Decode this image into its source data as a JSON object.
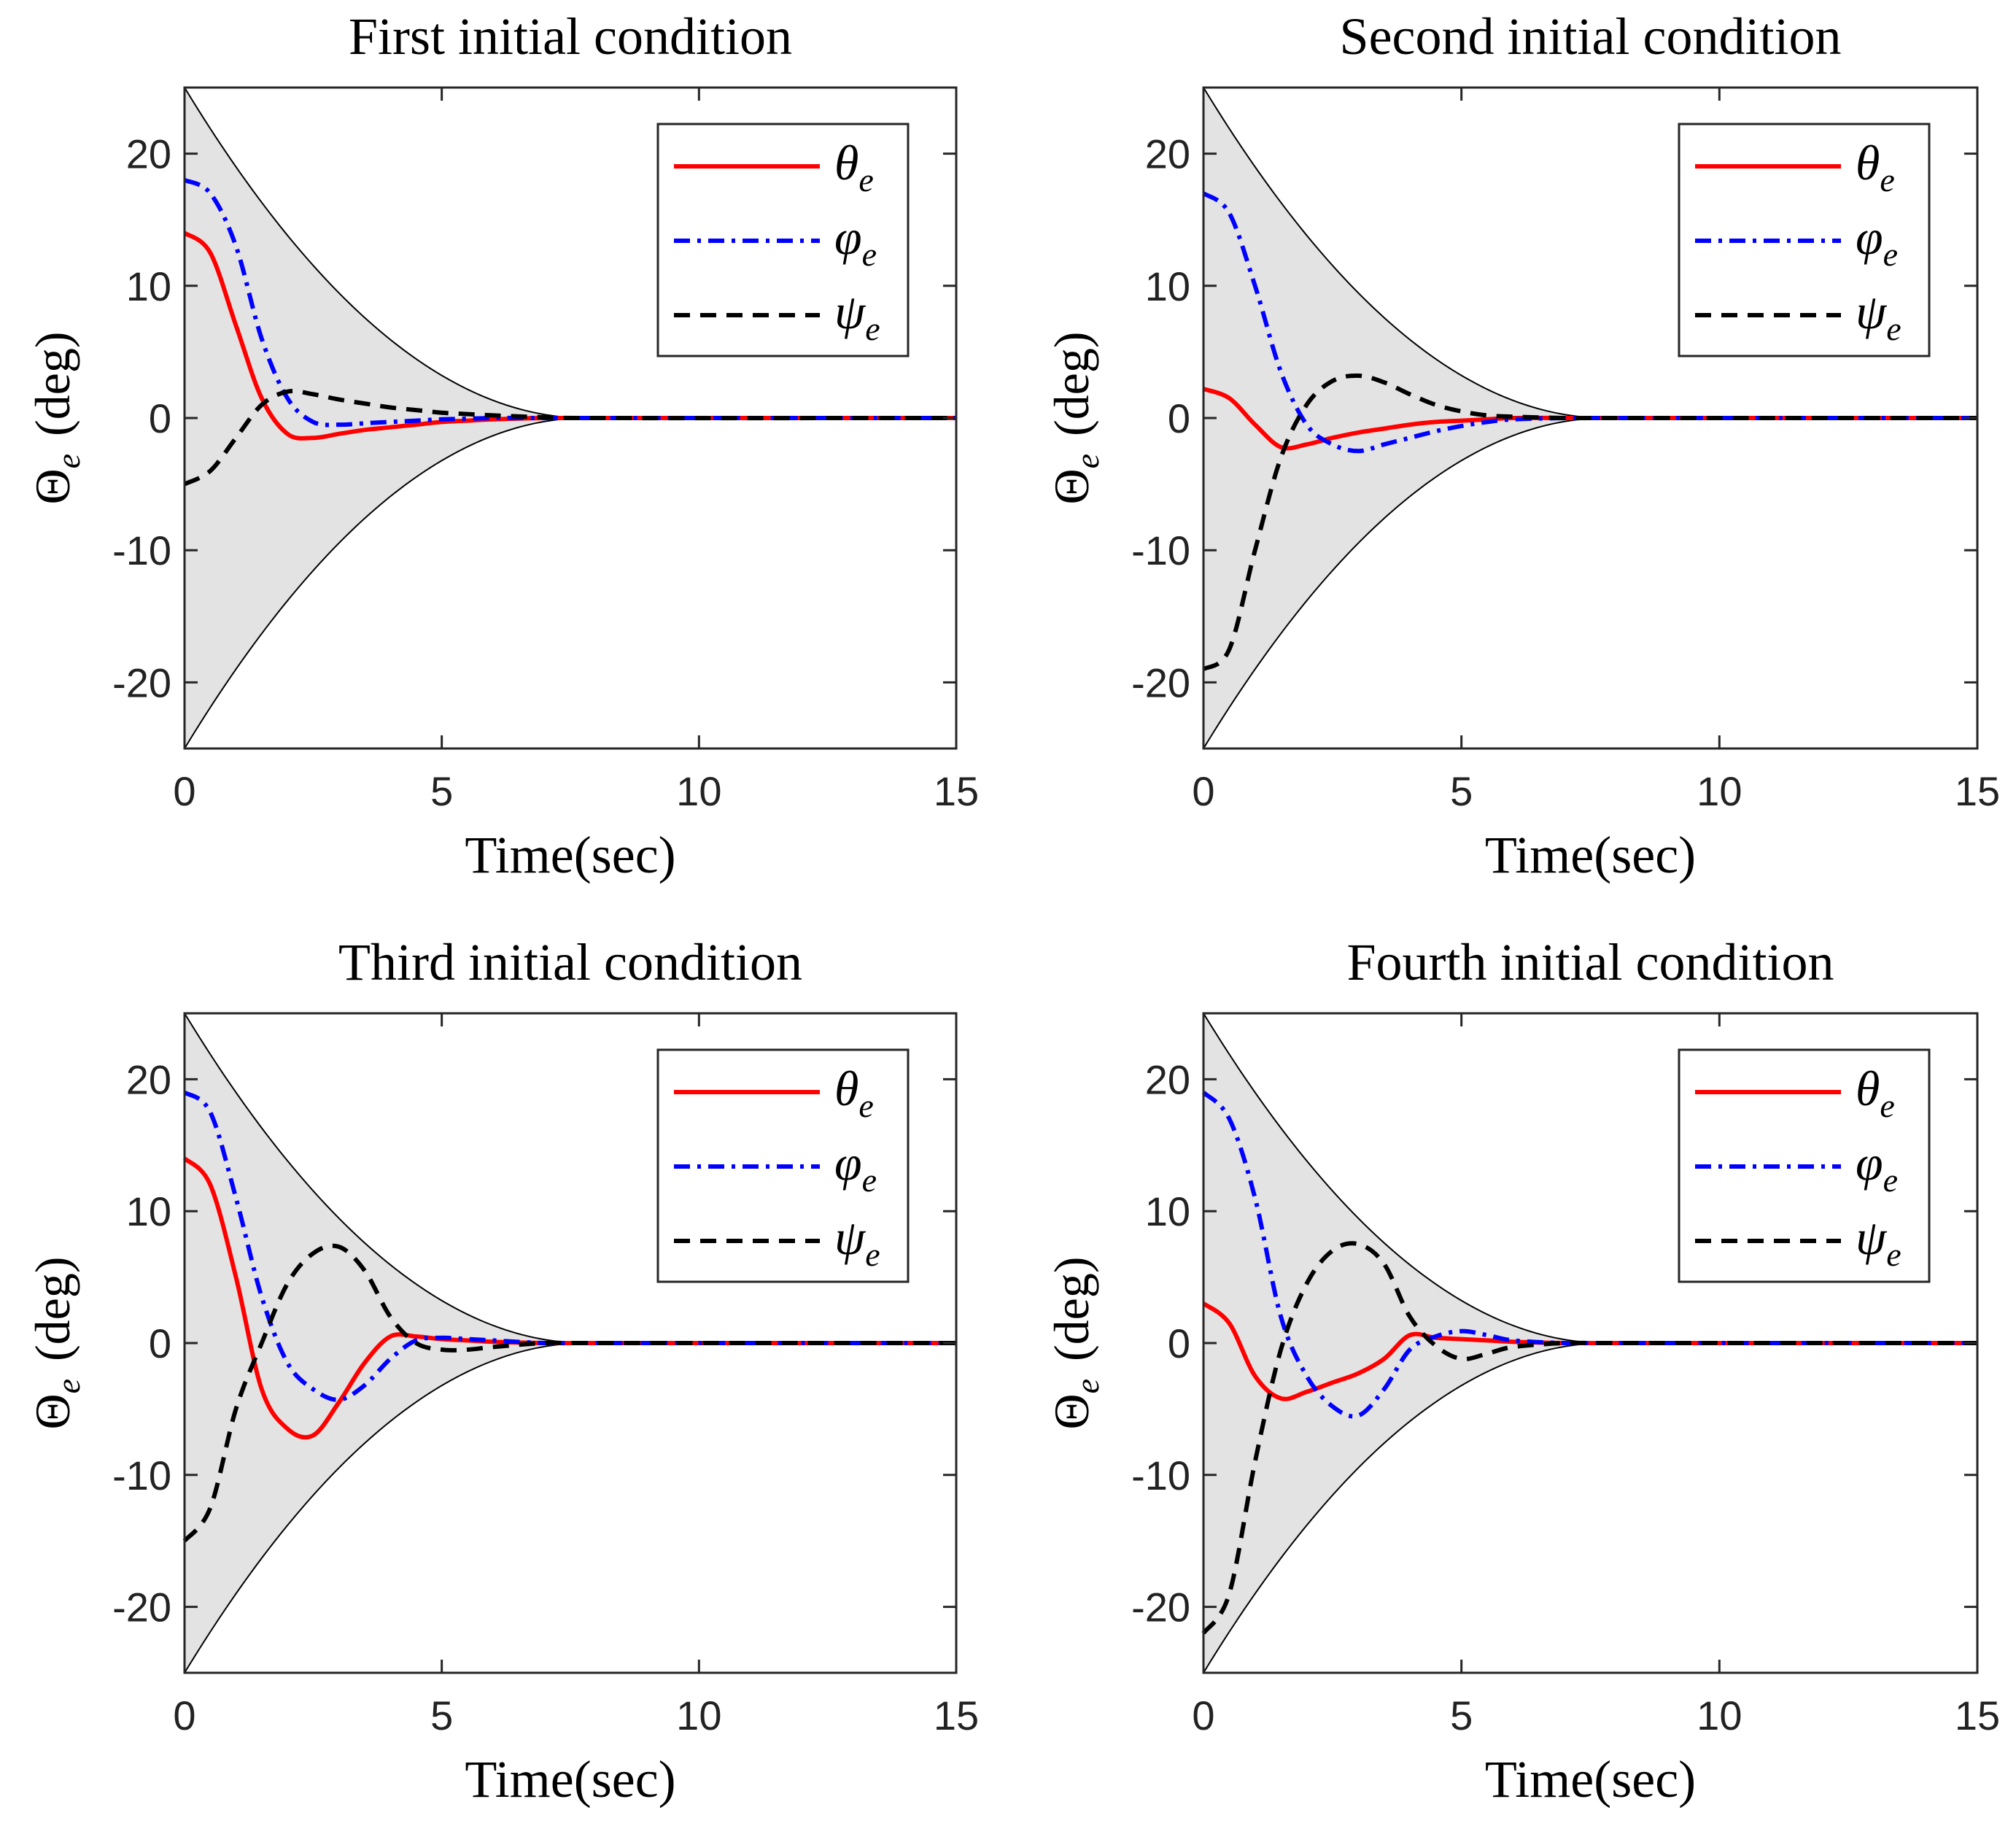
{
  "chart_data": [
    {
      "type": "line",
      "title": "First initial condition",
      "xlabel": "Time(sec)",
      "ylabel": {
        "symbol": "Θ",
        "sub": "e",
        "unit": "(deg)"
      },
      "xlim": [
        0,
        15
      ],
      "ylim": [
        -25,
        25
      ],
      "xticks": [
        "0",
        "5",
        "10",
        "15"
      ],
      "yticks": [
        "-20",
        "-10",
        "0",
        "10",
        "20"
      ],
      "legend_position": "top-right",
      "envelope": {
        "initial": 25,
        "converge_time": 7.8,
        "fill": "#e3e3e3"
      },
      "x": [
        0,
        0.5,
        1,
        1.5,
        2,
        2.5,
        3,
        3.5,
        4,
        4.5,
        5,
        5.5,
        6,
        7,
        8,
        15
      ],
      "series": [
        {
          "name": "θ",
          "sub": "e",
          "color": "#ff0000",
          "style": "solid",
          "values": [
            14,
            12.5,
            7,
            1.5,
            -1.2,
            -1.5,
            -1.2,
            -0.9,
            -0.7,
            -0.5,
            -0.3,
            -0.2,
            -0.1,
            0,
            0,
            0
          ]
        },
        {
          "name": "φ",
          "sub": "e",
          "color": "#0000ff",
          "style": "dashdot",
          "values": [
            18,
            17,
            13,
            6,
            1.5,
            -0.3,
            -0.5,
            -0.4,
            -0.3,
            -0.2,
            -0.1,
            -0.05,
            0,
            0,
            0,
            0
          ]
        },
        {
          "name": "ψ",
          "sub": "e",
          "color": "#000000",
          "style": "dashed",
          "values": [
            -5,
            -4,
            -1.5,
            1,
            2,
            1.8,
            1.4,
            1.1,
            0.8,
            0.6,
            0.4,
            0.3,
            0.2,
            0.05,
            0,
            0
          ]
        }
      ]
    },
    {
      "type": "line",
      "title": "Second initial condition",
      "xlabel": "Time(sec)",
      "ylabel": {
        "symbol": "Θ",
        "sub": "e",
        "unit": "(deg)"
      },
      "xlim": [
        0,
        15
      ],
      "ylim": [
        -25,
        25
      ],
      "xticks": [
        "0",
        "5",
        "10",
        "15"
      ],
      "yticks": [
        "-20",
        "-10",
        "0",
        "10",
        "20"
      ],
      "legend_position": "top-right",
      "envelope": {
        "initial": 25,
        "converge_time": 7.8,
        "fill": "#e3e3e3"
      },
      "x": [
        0,
        0.5,
        1,
        1.5,
        2,
        2.5,
        3,
        3.5,
        4,
        4.5,
        5,
        5.5,
        6,
        7,
        8,
        15
      ],
      "series": [
        {
          "name": "θ",
          "sub": "e",
          "color": "#ff0000",
          "style": "solid",
          "values": [
            2.2,
            1.5,
            -0.5,
            -2.2,
            -2,
            -1.5,
            -1.1,
            -0.8,
            -0.5,
            -0.3,
            -0.2,
            -0.1,
            0,
            0,
            0,
            0
          ]
        },
        {
          "name": "φ",
          "sub": "e",
          "color": "#0000ff",
          "style": "dashdot",
          "values": [
            17,
            15.5,
            10,
            3.5,
            -0.5,
            -2,
            -2.5,
            -2,
            -1.5,
            -1,
            -0.6,
            -0.3,
            -0.1,
            0,
            0,
            0
          ]
        },
        {
          "name": "ψ",
          "sub": "e",
          "color": "#000000",
          "style": "dashed",
          "values": [
            -19,
            -17.5,
            -10,
            -3,
            1,
            2.8,
            3.2,
            2.7,
            1.8,
            1,
            0.5,
            0.2,
            0.1,
            0,
            0,
            0
          ]
        }
      ]
    },
    {
      "type": "line",
      "title": "Third initial condition",
      "xlabel": "Time(sec)",
      "ylabel": {
        "symbol": "Θ",
        "sub": "e",
        "unit": "(deg)"
      },
      "xlim": [
        0,
        15
      ],
      "ylim": [
        -25,
        25
      ],
      "xticks": [
        "0",
        "5",
        "10",
        "15"
      ],
      "yticks": [
        "-20",
        "-10",
        "0",
        "10",
        "20"
      ],
      "legend_position": "top-right",
      "envelope": {
        "initial": 25,
        "converge_time": 7.8,
        "fill": "#e3e3e3"
      },
      "x": [
        0,
        0.5,
        1,
        1.5,
        2,
        2.5,
        3,
        3.5,
        4,
        4.5,
        5,
        5.5,
        6,
        7,
        8,
        15
      ],
      "series": [
        {
          "name": "θ",
          "sub": "e",
          "color": "#ff0000",
          "style": "solid",
          "values": [
            14,
            12,
            5,
            -3.5,
            -6.5,
            -7,
            -4.5,
            -1.5,
            0.5,
            0.5,
            0.3,
            0.2,
            0.1,
            0,
            0,
            0
          ]
        },
        {
          "name": "φ",
          "sub": "e",
          "color": "#0000ff",
          "style": "dashdot",
          "values": [
            19,
            17.5,
            11,
            3.5,
            -1.5,
            -3.5,
            -4.3,
            -3.2,
            -1.2,
            0.2,
            0.4,
            0.3,
            0.2,
            0,
            0,
            0
          ]
        },
        {
          "name": "ψ",
          "sub": "e",
          "color": "#000000",
          "style": "dashed",
          "values": [
            -15,
            -12.5,
            -5,
            0,
            4.5,
            6.8,
            7.3,
            5.5,
            2,
            0,
            -0.5,
            -0.5,
            -0.3,
            0,
            0,
            0
          ]
        }
      ]
    },
    {
      "type": "line",
      "title": "Fourth initial condition",
      "xlabel": "Time(sec)",
      "ylabel": {
        "symbol": "Θ",
        "sub": "e",
        "unit": "(deg)"
      },
      "xlim": [
        0,
        15
      ],
      "ylim": [
        -25,
        25
      ],
      "xticks": [
        "0",
        "5",
        "10",
        "15"
      ],
      "yticks": [
        "-20",
        "-10",
        "0",
        "10",
        "20"
      ],
      "legend_position": "top-right",
      "envelope": {
        "initial": 25,
        "converge_time": 7.8,
        "fill": "#e3e3e3"
      },
      "x": [
        0,
        0.5,
        1,
        1.5,
        2,
        2.5,
        3,
        3.5,
        4,
        4.5,
        5,
        5.5,
        6,
        7,
        8,
        15
      ],
      "series": [
        {
          "name": "θ",
          "sub": "e",
          "color": "#ff0000",
          "style": "solid",
          "values": [
            3,
            1.5,
            -2.5,
            -4.2,
            -3.7,
            -3,
            -2.3,
            -1.2,
            0.6,
            0.4,
            0.3,
            0.2,
            0.1,
            0,
            0,
            0
          ]
        },
        {
          "name": "φ",
          "sub": "e",
          "color": "#0000ff",
          "style": "dashdot",
          "values": [
            19,
            17,
            11,
            2,
            -2.5,
            -4.8,
            -5.5,
            -3.5,
            -0.5,
            0.5,
            0.9,
            0.6,
            0.2,
            0,
            0,
            0
          ]
        },
        {
          "name": "ψ",
          "sub": "e",
          "color": "#000000",
          "style": "dashed",
          "values": [
            -22,
            -19,
            -9,
            -0.5,
            4.5,
            7,
            7.5,
            6,
            2,
            -0.2,
            -1.2,
            -0.8,
            -0.3,
            0,
            0,
            0
          ]
        }
      ]
    }
  ]
}
